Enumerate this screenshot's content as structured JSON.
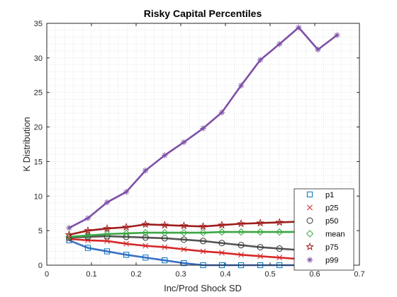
{
  "chart_data": {
    "type": "line",
    "title": "Risky Capital Percentiles",
    "xlabel": "Inc/Prod Shock SD",
    "ylabel": "K Distribution",
    "xlim": [
      0,
      0.7
    ],
    "ylim": [
      0,
      35
    ],
    "xticks": [
      "0",
      "0.1",
      "0.2",
      "0.3",
      "0.4",
      "0.5",
      "0.6",
      "0.7"
    ],
    "yticks": [
      "0",
      "5",
      "10",
      "15",
      "20",
      "25",
      "30",
      "35"
    ],
    "grid": "minor dotted",
    "legend_position": "bottom-right",
    "x": [
      0.05,
      0.092,
      0.135,
      0.178,
      0.221,
      0.264,
      0.307,
      0.35,
      0.392,
      0.435,
      0.478,
      0.521,
      0.564,
      0.607,
      0.65
    ],
    "series": [
      {
        "name": "p1",
        "marker": "square",
        "line_color": "#3a6fc4",
        "marker_color": "#0072bd",
        "values": [
          3.6,
          2.5,
          2.0,
          1.5,
          1.1,
          0.7,
          0.3,
          0.0,
          0.0,
          0.0,
          0.0,
          0.0,
          0.0,
          0.0,
          0.0
        ]
      },
      {
        "name": "p25",
        "marker": "x",
        "line_color": "#d62728",
        "marker_color": "#d62728",
        "values": [
          3.8,
          3.6,
          3.5,
          3.1,
          2.8,
          2.6,
          2.3,
          2.0,
          1.8,
          1.5,
          1.3,
          1.1,
          0.9,
          0.8,
          0.7
        ]
      },
      {
        "name": "p50",
        "marker": "circle",
        "line_color": "#555555",
        "marker_color": "#333333",
        "values": [
          4.0,
          4.1,
          4.2,
          4.1,
          4.0,
          3.9,
          3.7,
          3.5,
          3.2,
          2.9,
          2.6,
          2.4,
          2.2,
          2.0,
          1.9
        ]
      },
      {
        "name": "mean",
        "marker": "diamond",
        "line_color": "#3aa843",
        "marker_color": "#3aa843",
        "values": [
          4.1,
          4.3,
          4.5,
          4.6,
          4.7,
          4.7,
          4.7,
          4.7,
          4.8,
          4.8,
          4.8,
          4.8,
          4.8,
          4.7,
          4.5
        ]
      },
      {
        "name": "p75",
        "marker": "star",
        "line_color": "#a01c1c",
        "marker_color": "#a01c1c",
        "values": [
          4.4,
          5.0,
          5.3,
          5.5,
          5.9,
          5.8,
          5.7,
          5.6,
          5.8,
          6.0,
          6.1,
          6.2,
          6.3,
          6.3,
          6.4
        ]
      },
      {
        "name": "p99",
        "marker": "asterisk",
        "line_color": "#7e4fa8",
        "marker_color": "#7e4fa8",
        "values": [
          5.4,
          6.8,
          9.1,
          10.6,
          13.7,
          15.9,
          17.8,
          19.8,
          22.1,
          26.0,
          29.7,
          32.0,
          34.4,
          31.2,
          33.3
        ]
      }
    ]
  }
}
